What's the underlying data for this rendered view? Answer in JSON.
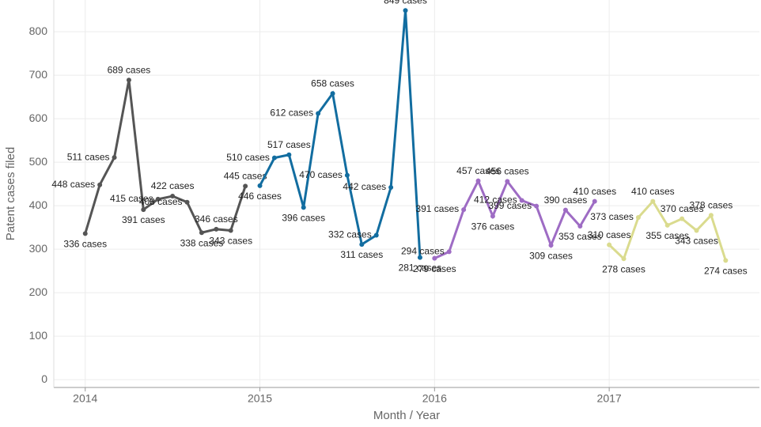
{
  "chart_data": {
    "type": "line",
    "xlabel": "Month / Year",
    "ylabel": "Patent cases filed",
    "xlim": [
      2013.82,
      2017.86
    ],
    "ylim": [
      -18,
      873
    ],
    "xticks": [
      2014,
      2015,
      2016,
      2017
    ],
    "yticks": [
      0,
      100,
      200,
      300,
      400,
      500,
      600,
      700,
      800
    ],
    "grid": true,
    "series": [
      {
        "name": "2014",
        "color": "#555555",
        "x": [
          2014,
          2014.0833,
          2014.1667,
          2014.25,
          2014.3333,
          2014.4167,
          2014.5,
          2014.5833,
          2014.6667,
          2014.75,
          2014.8333,
          2014.9167
        ],
        "values": [
          336,
          448,
          511,
          689,
          391,
          415,
          422,
          408,
          338,
          346,
          343,
          445
        ],
        "value_labels": [
          "336 cases",
          "448 cases",
          "511 cases",
          "689 cases",
          "391 cases",
          "415 cases",
          "422 cases",
          "408 cases",
          "338 cases",
          "346 cases",
          "343 cases",
          "445 cases"
        ]
      },
      {
        "name": "2015",
        "color": "#126da0",
        "x": [
          2015,
          2015.0833,
          2015.1667,
          2015.25,
          2015.3333,
          2015.4167,
          2015.5,
          2015.5833,
          2015.6667,
          2015.75,
          2015.8333,
          2015.9167
        ],
        "values": [
          446,
          510,
          517,
          396,
          612,
          658,
          470,
          311,
          332,
          442,
          849,
          281
        ],
        "value_labels": [
          "446 cases",
          "510 cases",
          "517 cases",
          "396 cases",
          "612 cases",
          "658 cases",
          "470 cases",
          "311 cases",
          "332 cases",
          "442 cases",
          "849 cases",
          "281 cases"
        ]
      },
      {
        "name": "2016",
        "color": "#9e6cc4",
        "x": [
          2016,
          2016.0833,
          2016.1667,
          2016.25,
          2016.3333,
          2016.4167,
          2016.5,
          2016.5833,
          2016.6667,
          2016.75,
          2016.8333,
          2016.9167
        ],
        "values": [
          279,
          294,
          391,
          457,
          376,
          456,
          412,
          399,
          309,
          390,
          353,
          410
        ],
        "value_labels": [
          "279 cases",
          "294 cases",
          "391 cases",
          "457 cases",
          "376 cases",
          "456 cases",
          "412 cases",
          "399 cases",
          "309 cases",
          "390 cases",
          "353 cases",
          "410 cases"
        ]
      },
      {
        "name": "2017",
        "color": "#dadb8e",
        "x": [
          2017,
          2017.0833,
          2017.1667,
          2017.25,
          2017.3333,
          2017.4167,
          2017.5,
          2017.5833,
          2017.6667
        ],
        "values": [
          310,
          278,
          373,
          410,
          355,
          370,
          343,
          378,
          274
        ],
        "value_labels": [
          "310 cases",
          "278 cases",
          "373 cases",
          "410 cases",
          "355 cases",
          "370 cases",
          "343 cases",
          "378 cases",
          "274 cases"
        ]
      }
    ]
  }
}
